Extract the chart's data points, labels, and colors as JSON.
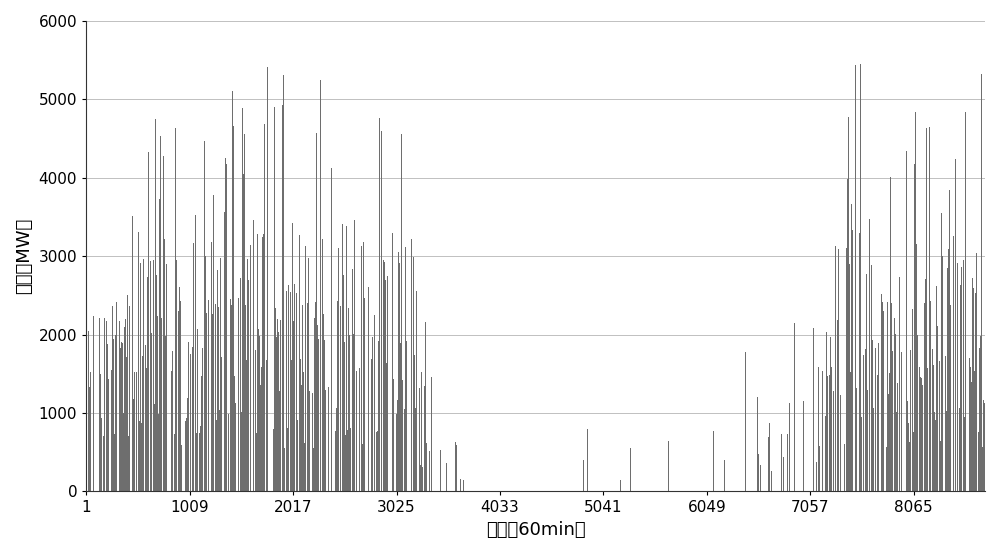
{
  "bar_color": "#6e6e6e",
  "xlim_left": 1,
  "xlim_right": 8760,
  "ylim": [
    0,
    6000
  ],
  "xticks": [
    1,
    1009,
    2017,
    3025,
    4033,
    5041,
    6049,
    7057,
    8065
  ],
  "xtick_labels": [
    "1",
    "1009",
    "2017",
    "3025",
    "4033",
    "5041",
    "6049",
    "7057",
    "8065"
  ],
  "yticks": [
    0,
    1000,
    2000,
    3000,
    4000,
    5000,
    6000
  ],
  "ytick_labels": [
    "0",
    "1000",
    "2000",
    "3000",
    "4000",
    "5000",
    "6000"
  ],
  "xlabel": "时间（60min）",
  "ylabel": "功率（MW）",
  "background_color": "#ffffff",
  "bar_width": 1.0,
  "xlabel_fontsize": 13,
  "ylabel_fontsize": 13,
  "tick_fontsize": 11,
  "grid_color": "#c0c0c0",
  "grid_linewidth": 0.7
}
